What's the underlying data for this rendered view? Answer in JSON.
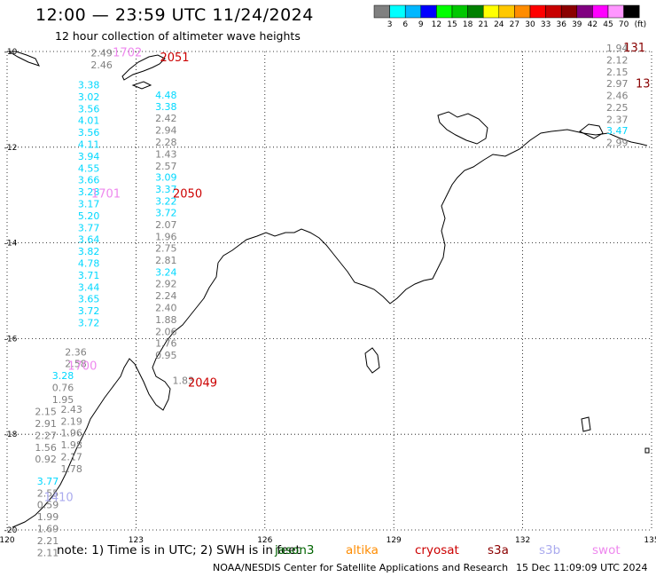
{
  "header": {
    "title": "12:00 — 23:59 UTC 11/24/2024",
    "subtitle": "12 hour collection of altimeter wave heights"
  },
  "legend": {
    "labels": [
      "3",
      "6",
      "9",
      "12",
      "15",
      "18",
      "21",
      "24",
      "27",
      "30",
      "33",
      "36",
      "39",
      "42",
      "45",
      "70"
    ],
    "unit": "(ft)",
    "colors": [
      "#808080",
      "#00ffff",
      "#00b7ff",
      "#0000ff",
      "#00ff00",
      "#00c800",
      "#008000",
      "#ffff00",
      "#ffc800",
      "#ff8c00",
      "#ff0000",
      "#c80000",
      "#8b0000",
      "#800080",
      "#ff00ff",
      "#ff96ff",
      "#000000"
    ]
  },
  "map": {
    "lon_ticks": [
      "120",
      "123",
      "126",
      "129",
      "132",
      "135"
    ],
    "lat_ticks": [
      "-10",
      "-12",
      "-14",
      "-16",
      "-18",
      "-20"
    ],
    "passes": [
      {
        "id": "2051",
        "color": "#cc0000",
        "lon": 123.9,
        "lat": -10.2
      },
      {
        "id": "1702",
        "color": "#ee88ee",
        "lon": 122.8,
        "lat": -10.1
      },
      {
        "id": "2050",
        "color": "#cc0000",
        "lon": 124.2,
        "lat": -13.05
      },
      {
        "id": "1701",
        "color": "#ee88ee",
        "lon": 122.3,
        "lat": -13.05
      },
      {
        "id": "2049",
        "color": "#cc0000",
        "lon": 124.55,
        "lat": -17.0
      },
      {
        "id": "1700",
        "color": "#ee88ee",
        "lon": 121.75,
        "lat": -16.65
      },
      {
        "id": "1410",
        "color": "#aaaaee",
        "lon": 121.2,
        "lat": -19.4
      },
      {
        "id": "131",
        "color": "#880000",
        "lon": 134.6,
        "lat": -10.0
      },
      {
        "id": "13",
        "color": "#880000",
        "lon": 134.8,
        "lat": -10.75
      }
    ],
    "tracks": [
      {
        "color": "#808080",
        "lon": 122.2,
        "lat": -10.1,
        "values": [
          "2.49",
          "2.46"
        ]
      },
      {
        "color": "#00d8ff",
        "lon": 121.9,
        "lat": -10.77,
        "values": [
          "3.38",
          "3.02",
          "3.56",
          "4.01",
          "3.56",
          "4.11",
          "3.94",
          "4.55",
          "3.66",
          "3.28",
          "3.17",
          "5.20",
          "3.77",
          "3.64",
          "3.82",
          "4.78",
          "3.71",
          "3.44",
          "3.65",
          "3.72",
          "3.72"
        ]
      },
      {
        "color": "#808080",
        "lon": 121.6,
        "lat": -16.35,
        "values": [
          "2.36",
          "2.58"
        ]
      },
      {
        "color": "#00d8ff",
        "lon": 121.3,
        "lat": -16.85,
        "values": [
          "3.28"
        ]
      },
      {
        "color": "#808080",
        "lon": 121.3,
        "lat": -17.1,
        "values": [
          "0.76",
          "1.95"
        ]
      },
      {
        "color": "#808080",
        "lon": 121.5,
        "lat": -17.55,
        "values": [
          "2.43",
          "2.19",
          "1.96",
          "1.98",
          "2.17",
          "1.78"
        ]
      },
      {
        "color": "#808080",
        "lon": 120.9,
        "lat": -17.6,
        "values": [
          "2.15",
          "2.91",
          "2.27",
          "1.56",
          "0.92"
        ]
      },
      {
        "color": "#00d8ff",
        "lon": 120.95,
        "lat": -19.05,
        "values": [
          "3.77"
        ]
      },
      {
        "color": "#808080",
        "lon": 120.95,
        "lat": -19.3,
        "values": [
          "2.55",
          "0.59",
          "1.99",
          "1.69",
          "2.21",
          "2.11"
        ]
      },
      {
        "color": "#00d8ff",
        "lon": 123.7,
        "lat": -10.98,
        "values": [
          "4.48",
          "3.38"
        ]
      },
      {
        "color": "#808080",
        "lon": 123.7,
        "lat": -11.47,
        "values": [
          "2.42",
          "2.94",
          "2.28",
          "1.43",
          "2.57"
        ]
      },
      {
        "color": "#00d8ff",
        "lon": 123.7,
        "lat": -12.7,
        "values": [
          "3.09",
          "3.37",
          "3.22",
          "3.72"
        ]
      },
      {
        "color": "#808080",
        "lon": 123.7,
        "lat": -13.69,
        "values": [
          "2.07",
          "1.96",
          "2.75",
          "2.81"
        ]
      },
      {
        "color": "#00d8ff",
        "lon": 123.7,
        "lat": -14.68,
        "values": [
          "3.24"
        ]
      },
      {
        "color": "#808080",
        "lon": 123.7,
        "lat": -14.93,
        "values": [
          "2.92",
          "2.24",
          "2.40",
          "1.88",
          "2.06",
          "1.76",
          "0.95"
        ]
      },
      {
        "color": "#808080",
        "lon": 124.1,
        "lat": -16.95,
        "values": [
          "1.83"
        ]
      },
      {
        "color": "#808080",
        "lon": 134.2,
        "lat": -10.0,
        "values": [
          "1.94",
          "2.12",
          "2.15",
          "2.97",
          "2.46",
          "2.25",
          "2.37"
        ]
      },
      {
        "color": "#00d8ff",
        "lon": 134.2,
        "lat": -11.73,
        "values": [
          "3.47"
        ]
      },
      {
        "color": "#808080",
        "lon": 134.2,
        "lat": -11.98,
        "values": [
          "2.99"
        ]
      }
    ]
  },
  "footer": {
    "note": "note: 1) Time is in UTC; 2) SWH is in feet",
    "satellites": [
      {
        "name": "jason3",
        "color": "#006400"
      },
      {
        "name": "altika",
        "color": "#ff8c00"
      },
      {
        "name": "cryosat",
        "color": "#cc0000"
      },
      {
        "name": "s3a",
        "color": "#8b0000"
      },
      {
        "name": "s3b",
        "color": "#aaaaee"
      },
      {
        "name": "swot",
        "color": "#ee88ee"
      }
    ],
    "credit": "NOAA/NESDIS Center for Satellite Applications and Research",
    "date": "15 Dec 11:09:09 UTC 2024"
  }
}
